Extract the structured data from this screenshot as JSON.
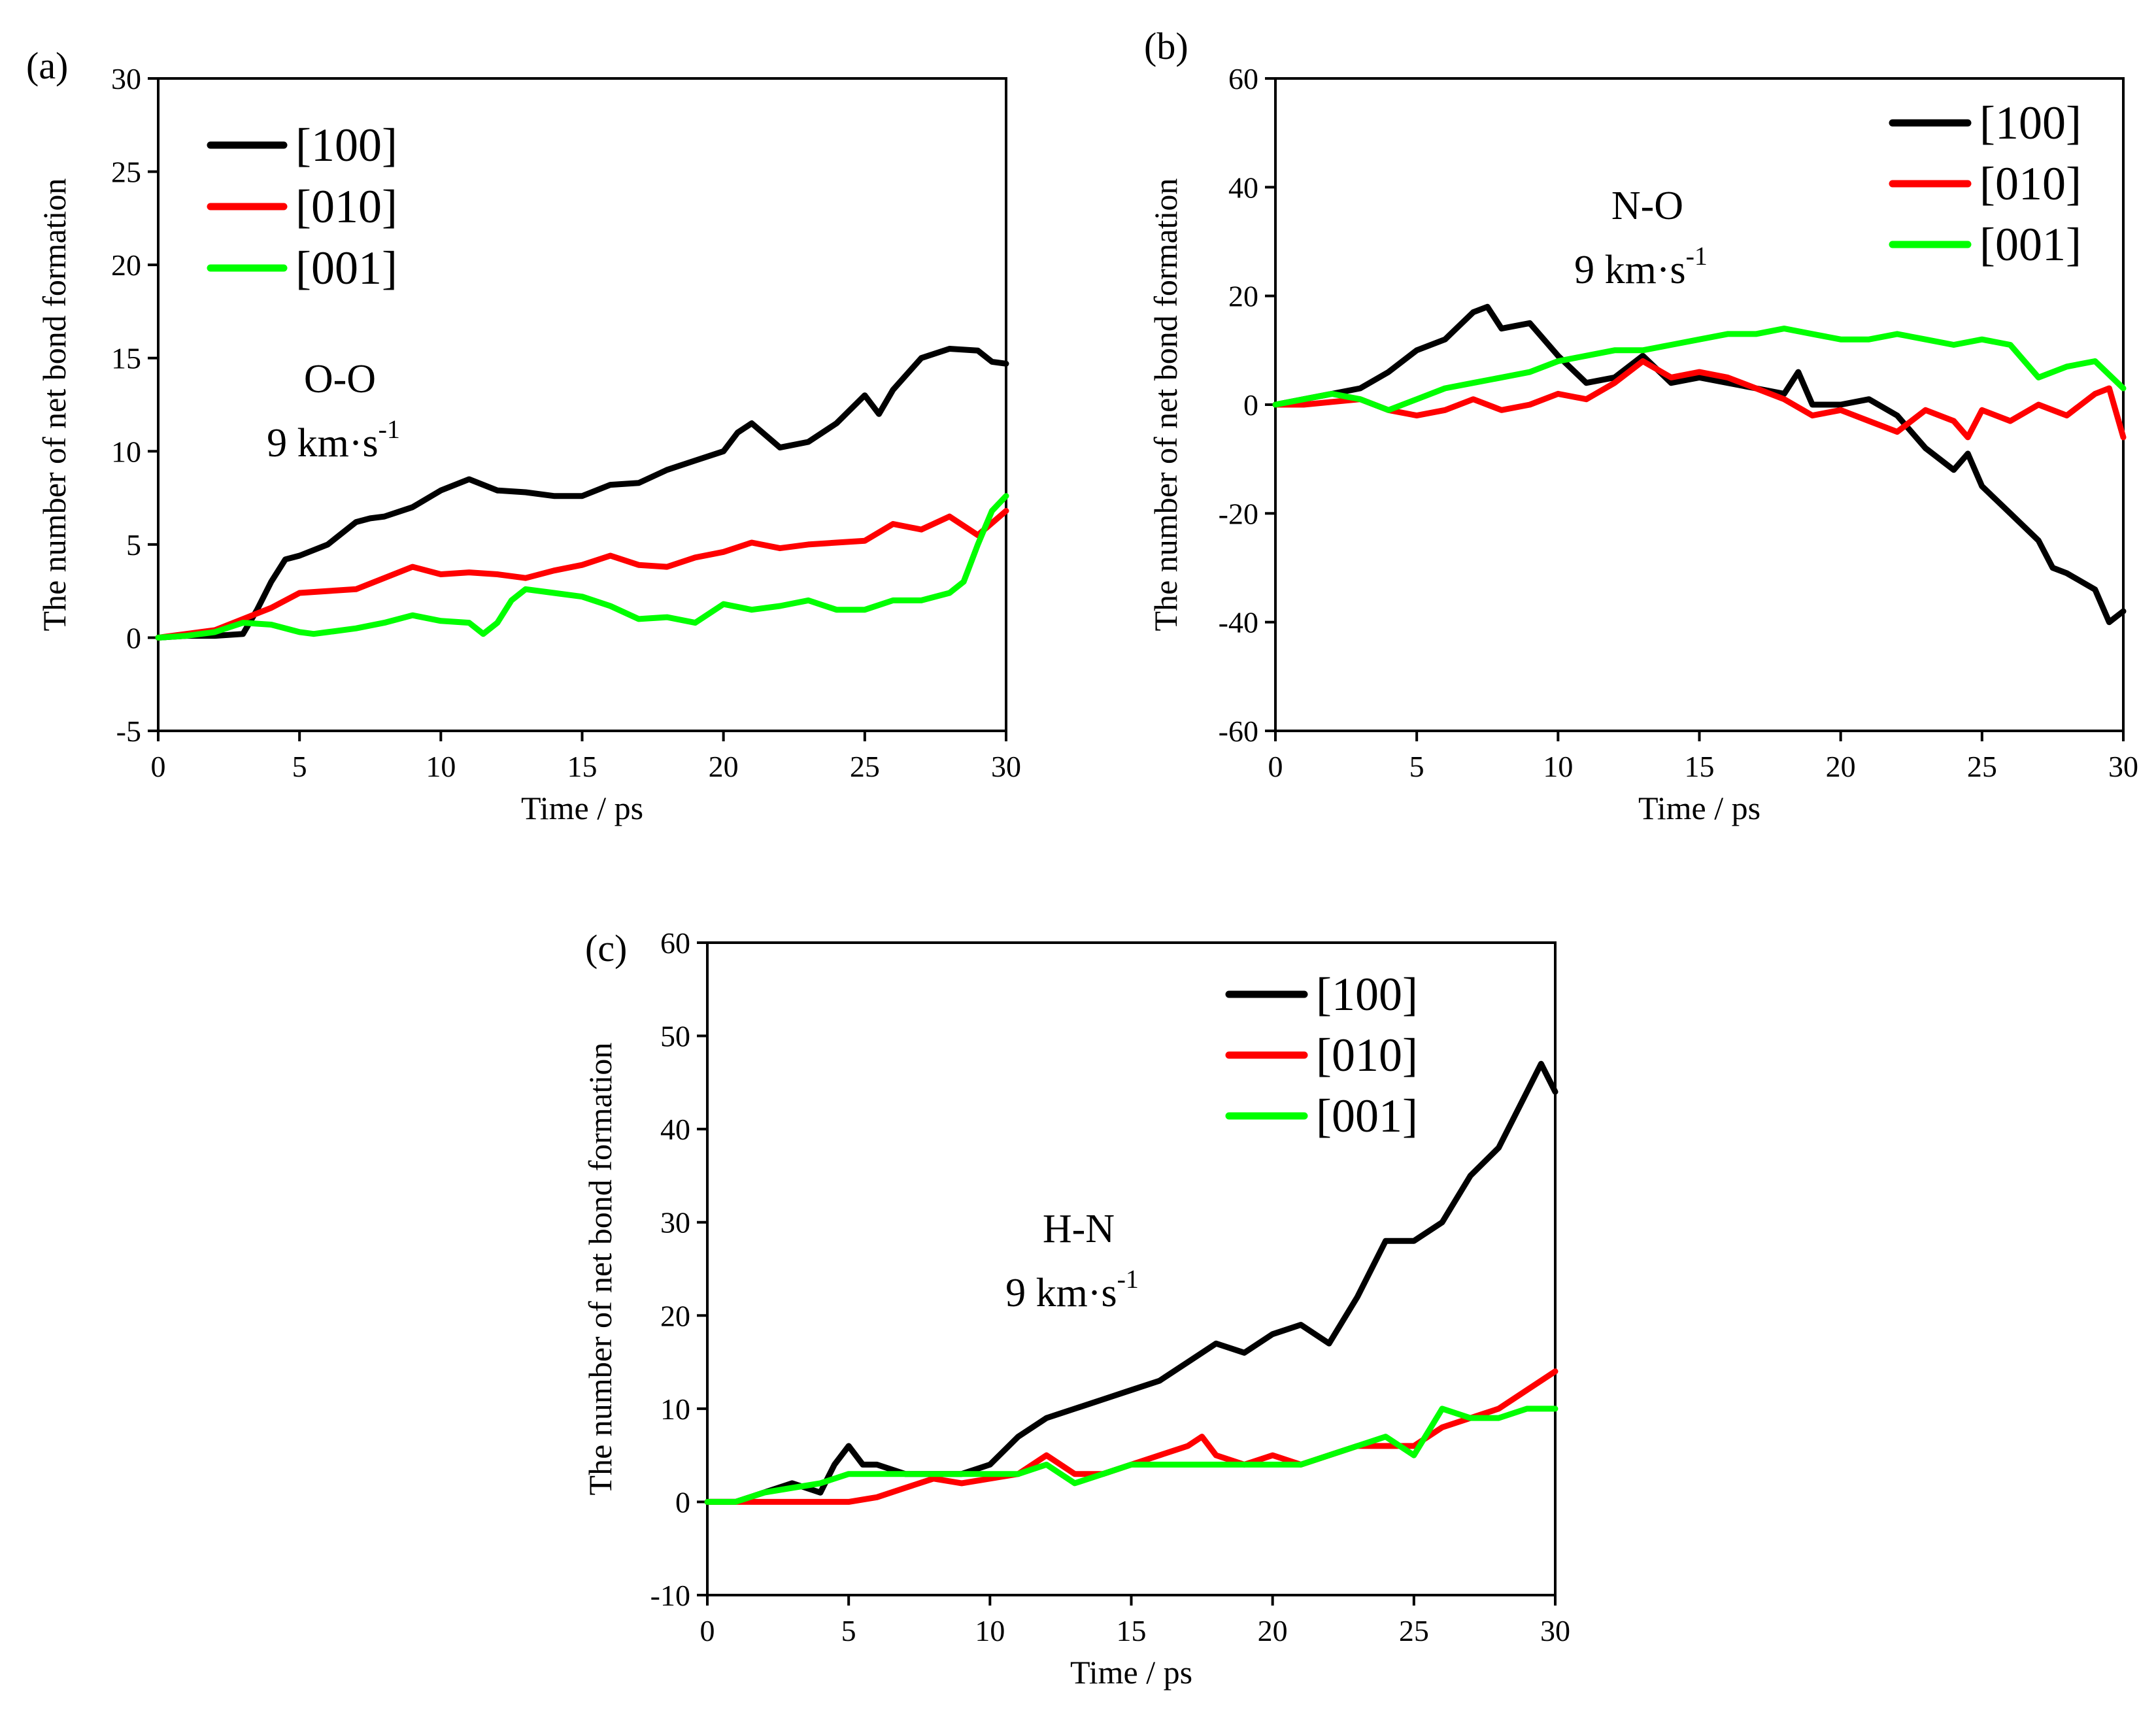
{
  "chart_data": [
    {
      "panel": "(a)",
      "type": "line",
      "xlabel": "Time / ps",
      "ylabel": "The number of net bond formation",
      "xlim": [
        0,
        30
      ],
      "ylim": [
        -5,
        30
      ],
      "xticks": [
        0,
        5,
        10,
        15,
        20,
        25,
        30
      ],
      "yticks": [
        -5,
        0,
        5,
        10,
        15,
        20,
        25,
        30
      ],
      "legend_position": "top-left",
      "annotation": {
        "species": "O-O",
        "velocity": "9 km·s",
        "velocity_exp": "-1"
      },
      "series": [
        {
          "name": "[100]",
          "color": "#000000",
          "x": [
            0,
            1,
            2,
            3,
            3.5,
            4,
            4.5,
            5,
            6,
            7,
            7.5,
            8,
            9,
            10,
            11,
            12,
            13,
            14,
            15,
            16,
            17,
            18,
            19,
            20,
            20.5,
            21,
            22,
            23,
            24,
            25,
            25.5,
            26,
            27,
            28,
            29,
            29.5,
            30
          ],
          "y": [
            0,
            0.1,
            0.1,
            0.2,
            1.5,
            3,
            4.2,
            4.4,
            5,
            6.2,
            6.4,
            6.5,
            7,
            7.9,
            8.5,
            7.9,
            7.8,
            7.6,
            7.6,
            8.2,
            8.3,
            9,
            9.5,
            10,
            11,
            11.5,
            10.2,
            10.5,
            11.5,
            13,
            12,
            13.3,
            15,
            15.5,
            15.4,
            14.8,
            14.7
          ]
        },
        {
          "name": "[010]",
          "color": "#ff0000",
          "x": [
            0,
            1,
            2,
            3,
            4,
            5,
            6,
            7,
            8,
            9,
            10,
            11,
            12,
            13,
            14,
            15,
            16,
            17,
            18,
            19,
            20,
            21,
            22,
            23,
            24,
            25,
            26,
            27,
            28,
            29,
            30
          ],
          "y": [
            0,
            0.2,
            0.4,
            1,
            1.6,
            2.4,
            2.5,
            2.6,
            3.2,
            3.8,
            3.4,
            3.5,
            3.4,
            3.2,
            3.6,
            3.9,
            4.4,
            3.9,
            3.8,
            4.3,
            4.6,
            5.1,
            4.8,
            5,
            5.1,
            5.2,
            6.1,
            5.8,
            6.5,
            5.5,
            6.8
          ]
        },
        {
          "name": "[001]",
          "color": "#00ff00",
          "x": [
            0,
            1,
            2,
            3,
            4,
            5,
            5.5,
            6,
            7,
            8,
            9,
            10,
            11,
            11.5,
            12,
            12.5,
            13,
            14,
            15,
            16,
            17,
            18,
            19,
            20,
            21,
            22,
            23,
            24,
            25,
            26,
            27,
            28,
            28.5,
            29,
            29.5,
            30
          ],
          "y": [
            0,
            0.1,
            0.3,
            0.8,
            0.7,
            0.3,
            0.2,
            0.3,
            0.5,
            0.8,
            1.2,
            0.9,
            0.8,
            0.2,
            0.8,
            2,
            2.6,
            2.4,
            2.2,
            1.7,
            1,
            1.1,
            0.8,
            1.8,
            1.5,
            1.7,
            2,
            1.5,
            1.5,
            2,
            2,
            2.4,
            3,
            5,
            6.8,
            7.6
          ]
        }
      ]
    },
    {
      "panel": "(b)",
      "type": "line",
      "xlabel": "Time / ps",
      "ylabel": "The number of net bond formation",
      "xlim": [
        0,
        30
      ],
      "ylim": [
        -60,
        60
      ],
      "xticks": [
        0,
        5,
        10,
        15,
        20,
        25,
        30
      ],
      "yticks": [
        -60,
        -40,
        -20,
        0,
        20,
        40,
        60
      ],
      "legend_position": "top-right",
      "annotation": {
        "species": "N-O",
        "velocity": "9 km·s",
        "velocity_exp": "-1"
      },
      "series": [
        {
          "name": "[100]",
          "color": "#000000",
          "x": [
            0,
            1,
            2,
            3,
            4,
            5,
            6,
            7,
            7.5,
            8,
            9,
            10,
            11,
            12,
            13,
            14,
            15,
            16,
            17,
            18,
            18.5,
            19,
            20,
            21,
            22,
            23,
            24,
            24.5,
            25,
            26,
            27,
            27.5,
            28,
            29,
            29.5,
            30
          ],
          "y": [
            0,
            1,
            2,
            3,
            6,
            10,
            12,
            17,
            18,
            14,
            15,
            9,
            4,
            5,
            9,
            4,
            5,
            4,
            3,
            2,
            6,
            0,
            0,
            1,
            -2,
            -8,
            -12,
            -9,
            -15,
            -20,
            -25,
            -30,
            -31,
            -34,
            -40,
            -38
          ]
        },
        {
          "name": "[010]",
          "color": "#ff0000",
          "x": [
            0,
            1,
            2,
            3,
            4,
            5,
            6,
            7,
            8,
            9,
            10,
            11,
            12,
            13,
            14,
            15,
            16,
            17,
            18,
            19,
            20,
            21,
            22,
            23,
            24,
            24.5,
            25,
            26,
            27,
            28,
            29,
            29.5,
            30
          ],
          "y": [
            0,
            0,
            0.5,
            1,
            -1,
            -2,
            -1,
            1,
            -1,
            0,
            2,
            1,
            4,
            8,
            5,
            6,
            5,
            3,
            1,
            -2,
            -1,
            -3,
            -5,
            -1,
            -3,
            -6,
            -1,
            -3,
            0,
            -2,
            2,
            3,
            -6
          ]
        },
        {
          "name": "[001]",
          "color": "#00ff00",
          "x": [
            0,
            1,
            2,
            3,
            4,
            5,
            6,
            7,
            8,
            9,
            10,
            11,
            12,
            13,
            14,
            15,
            16,
            17,
            18,
            19,
            20,
            21,
            22,
            23,
            24,
            25,
            26,
            27,
            28,
            29,
            30
          ],
          "y": [
            0,
            1,
            2,
            1,
            -1,
            1,
            3,
            4,
            5,
            6,
            8,
            9,
            10,
            10,
            11,
            12,
            13,
            13,
            14,
            13,
            12,
            12,
            13,
            12,
            11,
            12,
            11,
            5,
            7,
            8,
            3
          ]
        }
      ]
    },
    {
      "panel": "(c)",
      "type": "line",
      "xlabel": "Time / ps",
      "ylabel": "The number of net bond formation",
      "xlim": [
        0,
        30
      ],
      "ylim": [
        -10,
        60
      ],
      "xticks": [
        0,
        5,
        10,
        15,
        20,
        25,
        30
      ],
      "yticks": [
        -10,
        0,
        10,
        20,
        30,
        40,
        50,
        60
      ],
      "legend_position": "top-right",
      "annotation": {
        "species": "H-N",
        "velocity": "9 km·s",
        "velocity_exp": "-1"
      },
      "series": [
        {
          "name": "[100]",
          "color": "#000000",
          "x": [
            0,
            1,
            2,
            3,
            4,
            4.5,
            5,
            5.5,
            6,
            7,
            8,
            9,
            10,
            11,
            12,
            13,
            14,
            15,
            16,
            17,
            18,
            19,
            20,
            21,
            22,
            23,
            24,
            25,
            26,
            27,
            28,
            29,
            29.5,
            30
          ],
          "y": [
            0,
            0,
            1,
            2,
            1,
            4,
            6,
            4,
            4,
            3,
            3,
            3,
            4,
            7,
            9,
            10,
            11,
            12,
            13,
            15,
            17,
            16,
            18,
            19,
            17,
            22,
            28,
            28,
            30,
            35,
            38,
            44,
            47,
            44
          ]
        },
        {
          "name": "[010]",
          "color": "#ff0000",
          "x": [
            0,
            1,
            2,
            3,
            4,
            5,
            6,
            7,
            8,
            9,
            10,
            11,
            12,
            13,
            14,
            15,
            16,
            17,
            17.5,
            18,
            19,
            20,
            21,
            22,
            23,
            24,
            25,
            26,
            27,
            28,
            29,
            30
          ],
          "y": [
            0,
            0,
            0,
            0,
            0,
            0,
            0.5,
            1.5,
            2.5,
            2,
            2.5,
            3,
            5,
            3,
            3,
            4,
            5,
            6,
            7,
            5,
            4,
            5,
            4,
            5,
            6,
            6,
            6,
            8,
            9,
            10,
            12,
            14
          ]
        },
        {
          "name": "[001]",
          "color": "#00ff00",
          "x": [
            0,
            1,
            2,
            3,
            4,
            5,
            6,
            7,
            8,
            9,
            10,
            11,
            12,
            13,
            14,
            15,
            16,
            17,
            18,
            19,
            20,
            21,
            22,
            23,
            24,
            25,
            26,
            27,
            28,
            29,
            30
          ],
          "y": [
            0,
            0,
            1,
            1.5,
            2,
            3,
            3,
            3,
            3,
            3,
            3,
            3,
            4,
            2,
            3,
            4,
            4,
            4,
            4,
            4,
            4,
            4,
            5,
            6,
            7,
            5,
            10,
            9,
            9,
            10,
            10
          ]
        }
      ]
    }
  ]
}
